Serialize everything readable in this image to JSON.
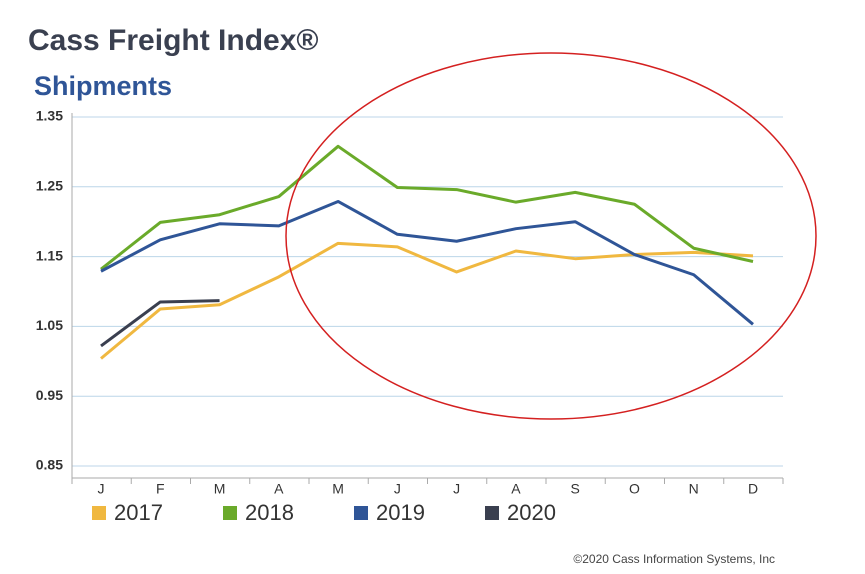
{
  "chart_data": {
    "type": "line",
    "title": "Cass Freight Index®",
    "subtitle": "Shipments",
    "source": "©2020 Cass Information Systems, Inc",
    "categories": [
      "J",
      "F",
      "M",
      "A",
      "M",
      "J",
      "J",
      "A",
      "S",
      "O",
      "N",
      "D"
    ],
    "series": [
      {
        "name": "2017",
        "color": "#f0b840",
        "values": [
          1.004,
          1.075,
          1.081,
          1.121,
          1.169,
          1.164,
          1.128,
          1.158,
          1.147,
          1.153,
          1.156,
          1.151
        ]
      },
      {
        "name": "2018",
        "color": "#6aaa2a",
        "values": [
          1.132,
          1.199,
          1.21,
          1.236,
          1.308,
          1.249,
          1.246,
          1.228,
          1.242,
          1.225,
          1.162,
          1.143
        ]
      },
      {
        "name": "2019",
        "color": "#2f5597",
        "values": [
          1.129,
          1.174,
          1.197,
          1.194,
          1.229,
          1.182,
          1.172,
          1.19,
          1.2,
          1.153,
          1.124,
          1.053
        ]
      },
      {
        "name": "2020",
        "color": "#3a3f4f",
        "values": [
          1.022,
          1.085,
          1.087,
          null,
          null,
          null,
          null,
          null,
          null,
          null,
          null,
          null
        ]
      }
    ],
    "ylim": [
      0.85,
      1.35
    ],
    "yticks": [
      0.85,
      0.95,
      1.05,
      1.15,
      1.25,
      1.35
    ],
    "grid": true
  }
}
